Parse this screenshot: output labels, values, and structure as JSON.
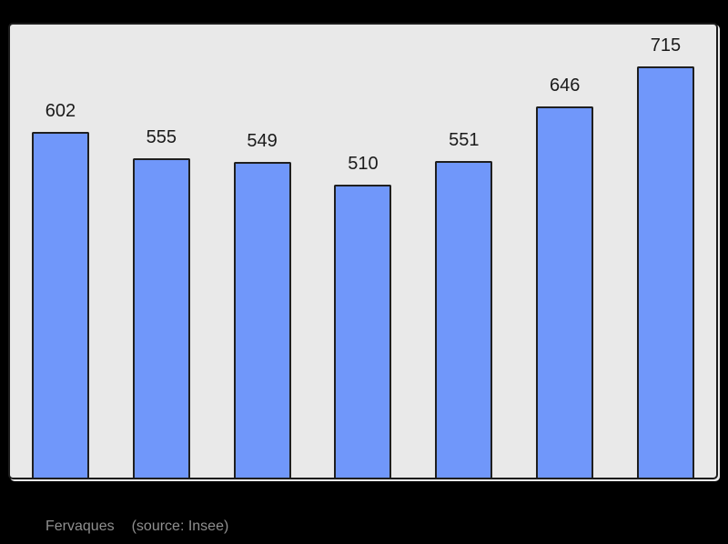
{
  "page": {
    "background": "#000000"
  },
  "chart_data": {
    "type": "bar",
    "values": [
      602,
      555,
      549,
      510,
      551,
      646,
      715
    ],
    "data_labels": [
      "602",
      "555",
      "549",
      "510",
      "551",
      "646",
      "715"
    ],
    "title": "",
    "xlabel": "",
    "ylabel": "",
    "ylim": [
      0,
      788
    ],
    "grid": false,
    "legend": "none",
    "x_axis_labels_visible": false,
    "y_axis_labels_visible": false,
    "bar_fill": "#7097fa",
    "bar_border": "#1f1f1f",
    "plot_background": "#e9e9e9",
    "value_label_color": "#1a1a1a"
  },
  "caption": {
    "commune": "Fervaques",
    "source": "(source: Insee)",
    "color": "#8f8f8f"
  }
}
